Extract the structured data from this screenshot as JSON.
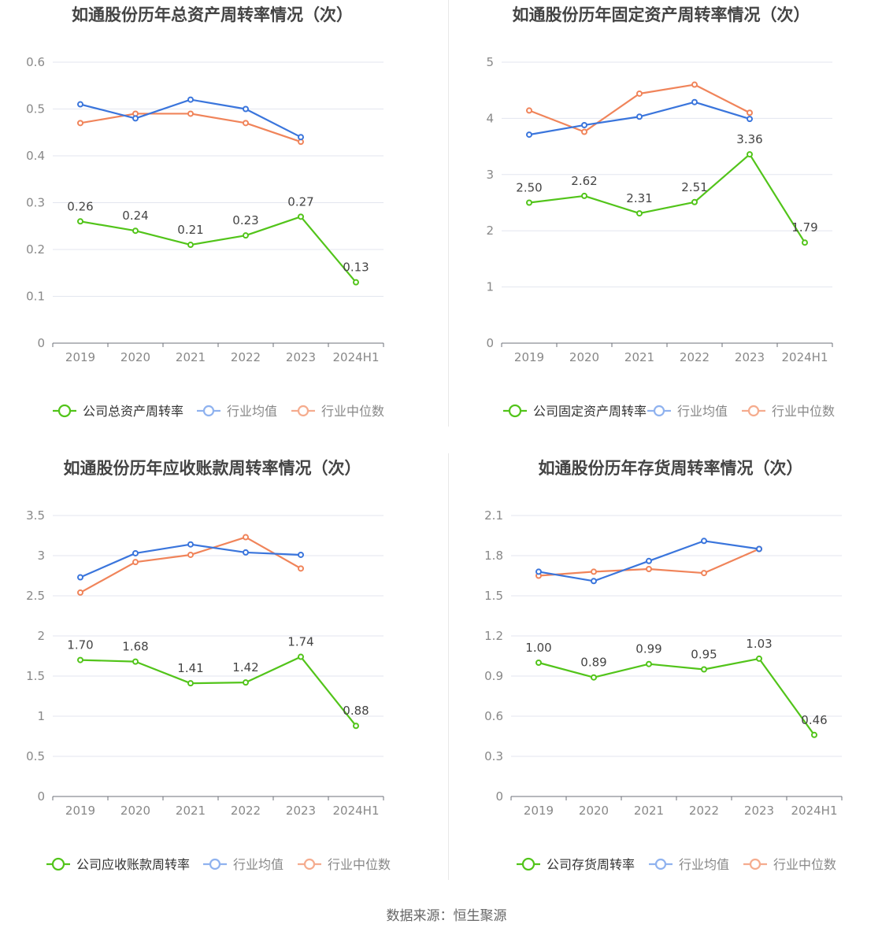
{
  "colors": {
    "company": "#52c41a",
    "average": "#3a75dc",
    "median": "#f0845a",
    "legend_average": "#8fb2ef",
    "legend_median": "#f5ac8e"
  },
  "source_text": "数据来源：恒生聚源",
  "chart_data": [
    {
      "type": "line",
      "title": "如通股份历年总资产周转率情况（次）",
      "x": [
        "2019",
        "2020",
        "2021",
        "2022",
        "2023",
        "2024H1"
      ],
      "ylim": [
        0,
        0.6
      ],
      "yticks": [
        0,
        0.1,
        0.2,
        0.3,
        0.4,
        0.5,
        0.6
      ],
      "ytick_labels": [
        "0",
        "0.1",
        "0.2",
        "0.3",
        "0.4",
        "0.5",
        "0.6"
      ],
      "grid": true,
      "legend_placement": "bottom",
      "series": [
        {
          "name": "公司总资产周转率",
          "role": "company",
          "values": [
            0.26,
            0.24,
            0.21,
            0.23,
            0.27,
            0.13
          ],
          "labels": [
            "0.26",
            "0.24",
            "0.21",
            "0.23",
            "0.27",
            "0.13"
          ]
        },
        {
          "name": "行业均值",
          "role": "average",
          "values": [
            0.51,
            0.48,
            0.52,
            0.5,
            0.44,
            null
          ]
        },
        {
          "name": "行业中位数",
          "role": "median",
          "values": [
            0.47,
            0.49,
            0.49,
            0.47,
            0.43,
            null
          ]
        }
      ]
    },
    {
      "type": "line",
      "title": "如通股份历年固定资产周转率情况（次）",
      "x": [
        "2019",
        "2020",
        "2021",
        "2022",
        "2023",
        "2024H1"
      ],
      "ylim": [
        0,
        5
      ],
      "yticks": [
        0,
        1,
        2,
        3,
        4,
        5
      ],
      "ytick_labels": [
        "0",
        "1",
        "2",
        "3",
        "4",
        "5"
      ],
      "grid": true,
      "legend_placement": "bottom",
      "series": [
        {
          "name": "公司固定资产周转率",
          "role": "company",
          "values": [
            2.5,
            2.62,
            2.31,
            2.51,
            3.36,
            1.79
          ],
          "labels": [
            "2.50",
            "2.62",
            "2.31",
            "2.51",
            "3.36",
            "1.79"
          ]
        },
        {
          "name": "行业均值",
          "role": "average",
          "values": [
            3.71,
            3.88,
            4.03,
            4.29,
            3.99,
            null
          ]
        },
        {
          "name": "行业中位数",
          "role": "median",
          "values": [
            4.14,
            3.76,
            4.44,
            4.6,
            4.1,
            null
          ]
        }
      ]
    },
    {
      "type": "line",
      "title": "如通股份历年应收账款周转率情况（次）",
      "x": [
        "2019",
        "2020",
        "2021",
        "2022",
        "2023",
        "2024H1"
      ],
      "ylim": [
        0,
        3.5
      ],
      "yticks": [
        0,
        0.5,
        1,
        1.5,
        2,
        2.5,
        3,
        3.5
      ],
      "ytick_labels": [
        "0",
        "0.5",
        "1",
        "1.5",
        "2",
        "2.5",
        "3",
        "3.5"
      ],
      "grid": true,
      "legend_placement": "bottom",
      "series": [
        {
          "name": "公司应收账款周转率",
          "role": "company",
          "values": [
            1.7,
            1.68,
            1.41,
            1.42,
            1.74,
            0.88
          ],
          "labels": [
            "1.70",
            "1.68",
            "1.41",
            "1.42",
            "1.74",
            "0.88"
          ]
        },
        {
          "name": "行业均值",
          "role": "average",
          "values": [
            2.73,
            3.03,
            3.14,
            3.04,
            3.01,
            null
          ]
        },
        {
          "name": "行业中位数",
          "role": "median",
          "values": [
            2.54,
            2.92,
            3.01,
            3.23,
            2.84,
            null
          ]
        }
      ]
    },
    {
      "type": "line",
      "title": "如通股份历年存货周转率情况（次）",
      "x": [
        "2019",
        "2020",
        "2021",
        "2022",
        "2023",
        "2024H1"
      ],
      "ylim": [
        0,
        2.1
      ],
      "yticks": [
        0,
        0.3,
        0.6,
        0.9,
        1.2,
        1.5,
        1.8,
        2.1
      ],
      "ytick_labels": [
        "0",
        "0.3",
        "0.6",
        "0.9",
        "1.2",
        "1.5",
        "1.8",
        "2.1"
      ],
      "grid": true,
      "legend_placement": "bottom",
      "series": [
        {
          "name": "公司存货周转率",
          "role": "company",
          "values": [
            1.0,
            0.89,
            0.99,
            0.95,
            1.03,
            0.46
          ],
          "labels": [
            "1.00",
            "0.89",
            "0.99",
            "0.95",
            "1.03",
            "0.46"
          ]
        },
        {
          "name": "行业均值",
          "role": "average",
          "values": [
            1.68,
            1.61,
            1.76,
            1.91,
            1.85,
            null
          ]
        },
        {
          "name": "行业中位数",
          "role": "median",
          "values": [
            1.65,
            1.68,
            1.7,
            1.67,
            1.85,
            null
          ]
        }
      ]
    }
  ]
}
